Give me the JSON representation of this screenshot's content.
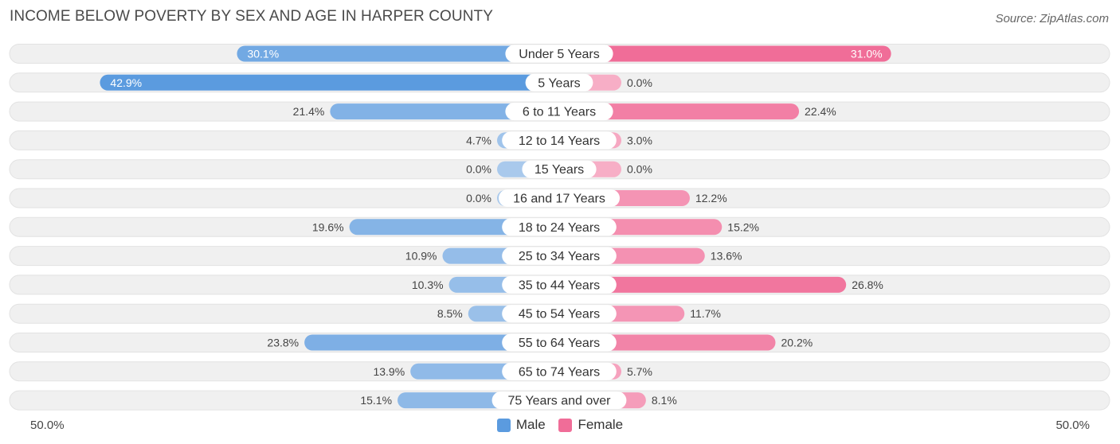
{
  "title": "INCOME BELOW POVERTY BY SEX AND AGE IN HARPER COUNTY",
  "source": "Source: ZipAtlas.com",
  "colors": {
    "male_dark": "#5b9bdf",
    "male_light": "#a9c9ec",
    "female_dark": "#f06d98",
    "female_light": "#f7aec6",
    "track": "#f0f0f0"
  },
  "chart_data": {
    "type": "bar",
    "orientation": "horizontal-diverging",
    "title": "INCOME BELOW POVERTY BY SEX AND AGE IN HARPER COUNTY",
    "categories": [
      "Under 5 Years",
      "5 Years",
      "6 to 11 Years",
      "12 to 14 Years",
      "15 Years",
      "16 and 17 Years",
      "18 to 24 Years",
      "25 to 34 Years",
      "35 to 44 Years",
      "45 to 54 Years",
      "55 to 64 Years",
      "65 to 74 Years",
      "75 Years and over"
    ],
    "series": [
      {
        "name": "Male",
        "values": [
          30.1,
          42.9,
          21.4,
          4.7,
          0.0,
          0.0,
          19.6,
          10.9,
          10.3,
          8.5,
          23.8,
          13.9,
          15.1
        ],
        "labels": [
          "30.1%",
          "42.9%",
          "21.4%",
          "4.7%",
          "0.0%",
          "0.0%",
          "19.6%",
          "10.9%",
          "10.3%",
          "8.5%",
          "23.8%",
          "13.9%",
          "15.1%"
        ]
      },
      {
        "name": "Female",
        "values": [
          31.0,
          0.0,
          22.4,
          3.0,
          0.0,
          12.2,
          15.2,
          13.6,
          26.8,
          11.7,
          20.2,
          5.7,
          8.1
        ],
        "labels": [
          "31.0%",
          "0.0%",
          "22.4%",
          "3.0%",
          "0.0%",
          "12.2%",
          "15.2%",
          "13.6%",
          "26.8%",
          "11.7%",
          "20.2%",
          "5.7%",
          "8.1%"
        ]
      }
    ],
    "xlim": [
      -50,
      50
    ],
    "axis_labels": {
      "left": "50.0%",
      "right": "50.0%"
    },
    "legend": [
      "Male",
      "Female"
    ],
    "legend_position": "bottom-center"
  }
}
